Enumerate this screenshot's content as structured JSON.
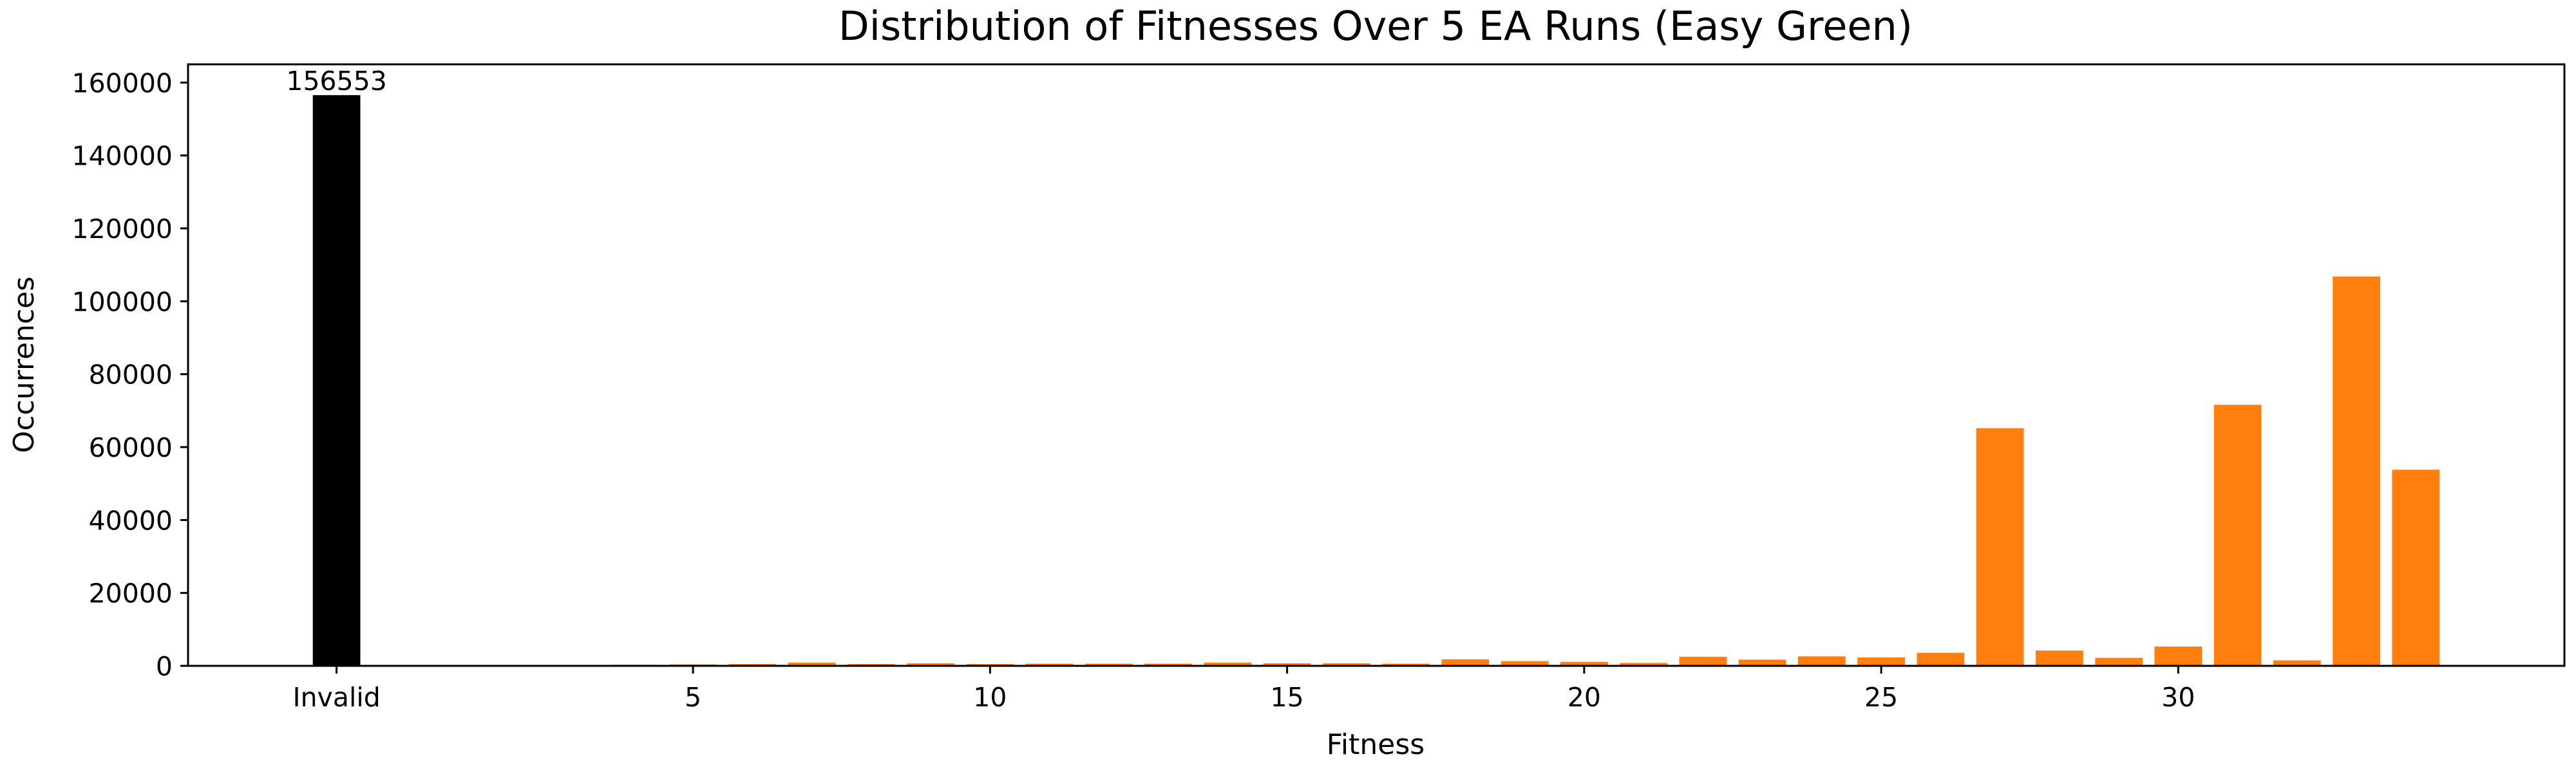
{
  "chart_data": {
    "type": "bar",
    "title": "Distribution of Fitnesses Over 5 EA Runs (Easy Green)",
    "xlabel": "Fitness",
    "ylabel": "Occurrences",
    "xlim": [
      -2.5,
      37.5
    ],
    "ylim": [
      0,
      165000
    ],
    "x_ticks": [
      {
        "x": 0,
        "label": "Invalid"
      },
      {
        "x": 6,
        "label": "5"
      },
      {
        "x": 11,
        "label": "10"
      },
      {
        "x": 16,
        "label": "15"
      },
      {
        "x": 21,
        "label": "20"
      },
      {
        "x": 26,
        "label": "25"
      },
      {
        "x": 31,
        "label": "30"
      }
    ],
    "y_ticks": [
      0,
      20000,
      40000,
      60000,
      80000,
      100000,
      120000,
      140000,
      160000
    ],
    "grid": false,
    "colors": {
      "invalid": "#000000",
      "fitness": "#ff7f0e"
    },
    "series": [
      {
        "x": [
          0,
          4,
          5,
          6,
          7,
          8,
          9,
          10,
          11,
          12,
          13,
          14,
          15,
          16,
          17,
          18,
          19,
          20,
          21,
          22,
          23,
          24,
          25,
          26,
          27,
          28,
          29,
          30,
          31,
          32,
          33,
          34,
          35
        ],
        "values": [
          156553,
          150,
          300,
          400,
          500,
          900,
          500,
          700,
          500,
          600,
          600,
          600,
          900,
          700,
          700,
          600,
          1800,
          1300,
          1100,
          800,
          2500,
          1700,
          2600,
          2300,
          3600,
          65200,
          4200,
          2200,
          5300,
          71600,
          1500,
          106800,
          53800
        ],
        "colors": [
          "invalid",
          "fitness",
          "fitness",
          "fitness",
          "fitness",
          "fitness",
          "fitness",
          "fitness",
          "fitness",
          "fitness",
          "fitness",
          "fitness",
          "fitness",
          "fitness",
          "fitness",
          "fitness",
          "fitness",
          "fitness",
          "fitness",
          "fitness",
          "fitness",
          "fitness",
          "fitness",
          "fitness",
          "fitness",
          "fitness",
          "fitness",
          "fitness",
          "fitness",
          "fitness",
          "fitness",
          "fitness",
          "fitness"
        ]
      }
    ],
    "annotations": [
      {
        "x": 0,
        "text": "156553"
      }
    ]
  }
}
